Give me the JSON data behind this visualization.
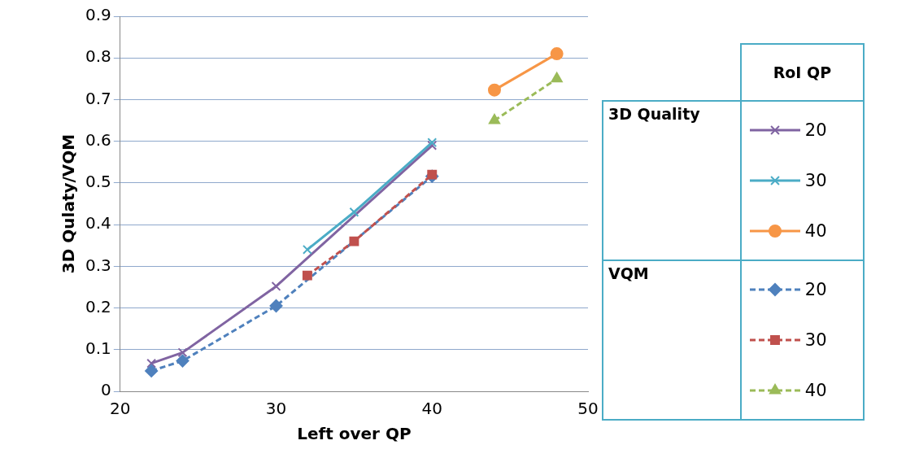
{
  "chart_data": {
    "type": "line",
    "xlabel": "Left over QP",
    "ylabel": "3D Qulaty/VQM",
    "legend_title": "RoI QP",
    "annotations": [
      "3D Quality",
      "VQM"
    ],
    "xlim": [
      20,
      50
    ],
    "xticks": [
      20,
      30,
      40,
      50
    ],
    "ylim": [
      0,
      0.9
    ],
    "yticks": [
      0,
      0.1,
      0.2,
      0.3,
      0.4,
      0.5,
      0.6,
      0.7,
      0.8,
      0.9
    ],
    "grid": "y",
    "legend": "right",
    "series": [
      {
        "name": "20",
        "color": "#8064a2",
        "marker": "cross",
        "line_style": "solid",
        "x": [
          22,
          24,
          30,
          40
        ],
        "values": [
          0.067,
          0.093,
          0.252,
          0.59
        ]
      },
      {
        "name": "30",
        "color": "#4bacc6",
        "marker": "cross",
        "line_style": "solid",
        "x": [
          32,
          35,
          40
        ],
        "values": [
          0.34,
          0.43,
          0.597
        ]
      },
      {
        "name": "40",
        "color": "#f79646",
        "marker": "circle",
        "line_style": "solid",
        "x": [
          44,
          48
        ],
        "values": [
          0.723,
          0.81
        ]
      },
      {
        "name": "20",
        "color": "#4f81bd",
        "marker": "diamond",
        "line_style": "dashed",
        "x": [
          22,
          24,
          30,
          40
        ],
        "values": [
          0.049,
          0.073,
          0.205,
          0.516
        ]
      },
      {
        "name": "30",
        "color": "#c0504d",
        "marker": "square",
        "line_style": "dashed",
        "x": [
          32,
          35,
          40
        ],
        "values": [
          0.278,
          0.36,
          0.52
        ]
      },
      {
        "name": "40",
        "color": "#9bbb59",
        "marker": "triangle",
        "line_style": "dashed",
        "x": [
          44,
          48
        ],
        "values": [
          0.65,
          0.75
        ]
      }
    ]
  }
}
